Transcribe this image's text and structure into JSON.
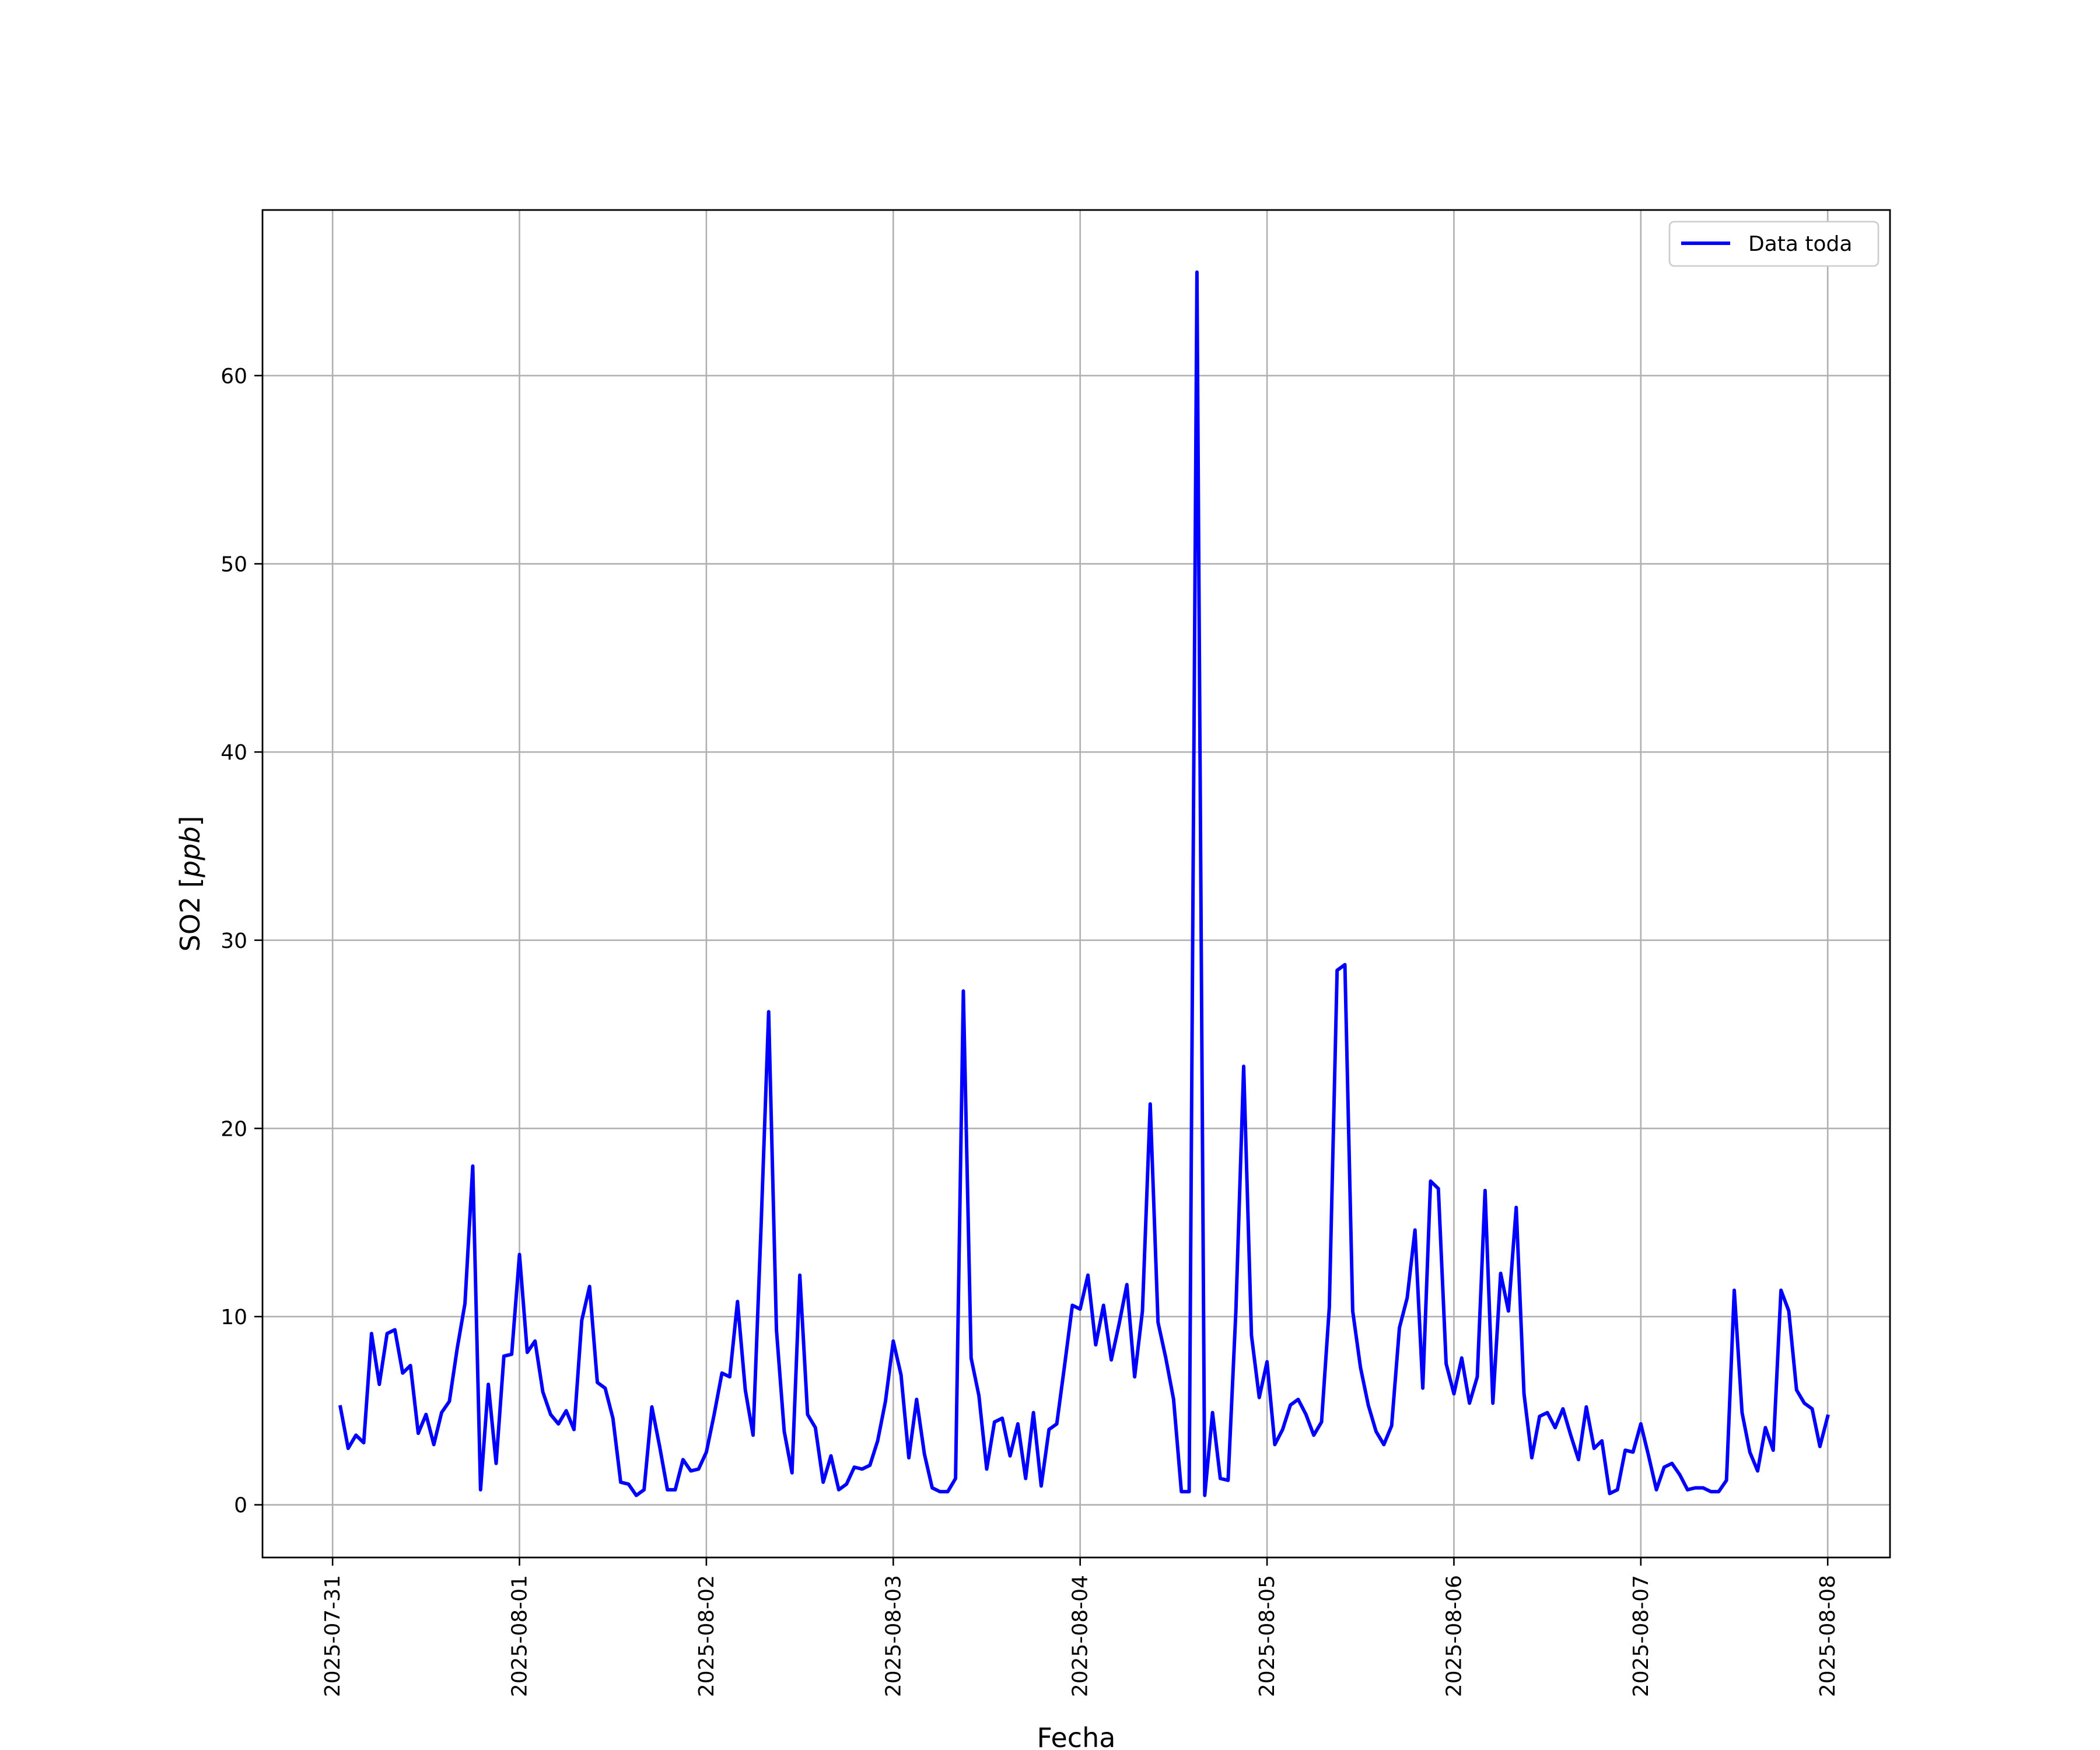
{
  "chart_data": {
    "type": "line",
    "xlabel": "Fecha",
    "ylabel": "SO2 [ppb]",
    "ylabel_text": "SO2 [",
    "ylabel_unit": "ppb",
    "ylabel_close": "]",
    "x_ticks": [
      "2025-07-31",
      "2025-08-01",
      "2025-08-02",
      "2025-08-03",
      "2025-08-04",
      "2025-08-05",
      "2025-08-06",
      "2025-08-07",
      "2025-08-08"
    ],
    "y_ticks": [
      0,
      10,
      20,
      30,
      40,
      50,
      60
    ],
    "xlim": [
      "2025-07-30T15:00",
      "2025-08-08T08:00"
    ],
    "ylim": [
      -2.8,
      68.8
    ],
    "grid": true,
    "legend": {
      "placement": "upper right",
      "entries": [
        "Data toda"
      ]
    },
    "series": [
      {
        "name": "Data toda",
        "color": "#0000ff",
        "start": "2025-07-31T01:00",
        "step_hours": 1,
        "values": [
          5.2,
          3.0,
          3.7,
          3.3,
          9.1,
          6.4,
          9.1,
          9.3,
          7.0,
          7.4,
          3.8,
          4.8,
          3.2,
          4.9,
          5.5,
          8.3,
          10.7,
          18.0,
          0.8,
          6.4,
          2.2,
          7.9,
          8.0,
          13.3,
          8.1,
          8.7,
          6.0,
          4.8,
          4.3,
          5.0,
          4.0,
          9.8,
          11.6,
          6.5,
          6.2,
          4.6,
          1.2,
          1.1,
          0.5,
          0.8,
          5.2,
          3.1,
          0.8,
          0.8,
          2.4,
          1.8,
          1.9,
          2.8,
          4.8,
          7.0,
          6.8,
          10.8,
          6.1,
          3.7,
          14.5,
          26.2,
          9.3,
          3.9,
          1.7,
          12.2,
          4.8,
          4.1,
          1.2,
          2.6,
          0.8,
          1.1,
          2.0,
          1.9,
          2.1,
          3.4,
          5.5,
          8.7,
          6.9,
          2.5,
          5.6,
          2.7,
          0.9,
          0.7,
          0.7,
          1.4,
          27.3,
          7.8,
          5.8,
          1.9,
          4.4,
          4.6,
          2.6,
          4.3,
          1.4,
          4.9,
          1.0,
          4.0,
          4.3,
          7.4,
          10.6,
          10.4,
          12.2,
          8.5,
          10.6,
          7.7,
          9.6,
          11.7,
          6.8,
          10.3,
          21.3,
          9.7,
          7.8,
          5.6,
          0.7,
          0.7,
          65.5,
          0.5,
          4.9,
          1.4,
          1.3,
          10.3,
          23.3,
          9.0,
          5.7,
          7.6,
          3.2,
          4.0,
          5.3,
          5.6,
          4.8,
          3.7,
          4.4,
          10.5,
          28.4,
          28.7,
          10.3,
          7.3,
          5.3,
          3.9,
          3.2,
          4.2,
          9.4,
          11.0,
          14.6,
          6.2,
          17.2,
          16.8,
          7.5,
          5.9,
          7.8,
          5.4,
          6.8,
          16.7,
          5.4,
          12.3,
          10.3,
          15.8,
          5.9,
          2.5,
          4.7,
          4.9,
          4.1,
          5.1,
          3.7,
          2.4,
          5.2,
          3.0,
          3.4,
          0.6,
          0.8,
          2.9,
          2.8,
          4.3,
          2.6,
          0.8,
          2.0,
          2.2,
          1.6,
          0.8,
          0.9,
          0.9,
          0.7,
          0.7,
          1.3,
          11.4,
          4.9,
          2.8,
          1.8,
          4.1,
          2.9,
          11.4,
          10.3,
          6.1,
          5.4,
          5.1,
          3.1,
          4.7
        ]
      }
    ]
  }
}
